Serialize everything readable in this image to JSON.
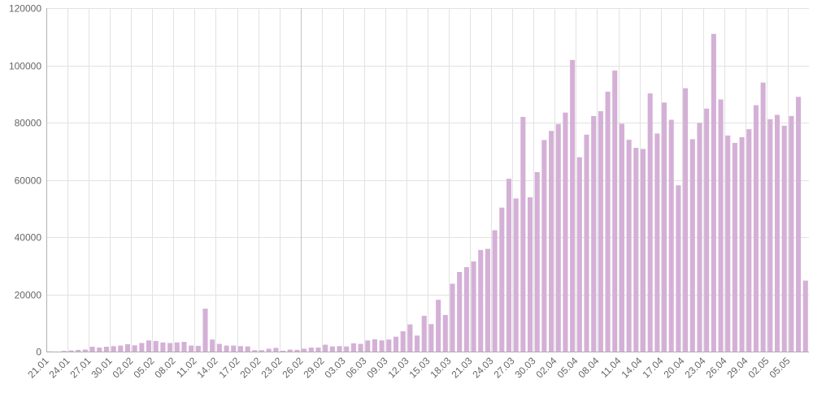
{
  "chart_data": {
    "type": "bar",
    "title": "",
    "xlabel": "",
    "ylabel": "",
    "ylim": [
      0,
      120000
    ],
    "yticks": [
      0,
      20000,
      40000,
      60000,
      80000,
      100000,
      120000
    ],
    "ytick_labels": [
      "0",
      "20000",
      "40000",
      "60000",
      "80000",
      "100000",
      "120000"
    ],
    "grid": true,
    "bar_color": "#d4b0d6",
    "marker_line_date": "26.02",
    "xtick_every": 3,
    "categories": [
      "21.01",
      "22.01",
      "23.01",
      "24.01",
      "25.01",
      "26.01",
      "27.01",
      "28.01",
      "29.01",
      "30.01",
      "31.01",
      "01.02",
      "02.02",
      "03.02",
      "04.02",
      "05.02",
      "06.02",
      "07.02",
      "08.02",
      "09.02",
      "10.02",
      "11.02",
      "12.02",
      "13.02",
      "14.02",
      "15.02",
      "16.02",
      "17.02",
      "18.02",
      "19.02",
      "20.02",
      "21.02",
      "22.02",
      "23.02",
      "24.02",
      "25.02",
      "26.02",
      "27.02",
      "28.02",
      "29.02",
      "01.03",
      "02.03",
      "03.03",
      "04.03",
      "05.03",
      "06.03",
      "07.03",
      "08.03",
      "09.03",
      "10.03",
      "11.03",
      "12.03",
      "13.03",
      "14.03",
      "15.03",
      "16.03",
      "17.03",
      "18.03",
      "19.03",
      "20.03",
      "21.03",
      "22.03",
      "23.03",
      "24.03",
      "25.03",
      "26.03",
      "27.03",
      "28.03",
      "29.03",
      "30.03",
      "31.03",
      "01.04",
      "02.04",
      "03.04",
      "04.04",
      "05.04",
      "06.04",
      "07.04",
      "08.04",
      "09.04",
      "10.04",
      "11.04",
      "12.04",
      "13.04",
      "14.04",
      "15.04",
      "16.04",
      "17.04",
      "18.04",
      "19.04",
      "20.04",
      "21.04",
      "22.04",
      "23.04",
      "24.04",
      "25.04",
      "26.04",
      "27.04",
      "28.04",
      "29.04",
      "30.04",
      "01.05",
      "02.05",
      "03.05",
      "04.05",
      "05.05",
      "06.05",
      "07.05"
    ],
    "values": [
      80,
      0,
      250,
      400,
      600,
      700,
      1700,
      1400,
      1700,
      1900,
      2100,
      2600,
      2200,
      3000,
      3900,
      3700,
      3200,
      3000,
      3200,
      3400,
      2100,
      2000,
      15000,
      4200,
      2700,
      2100,
      2100,
      1900,
      1800,
      500,
      500,
      1000,
      1300,
      300,
      700,
      600,
      1000,
      1400,
      1400,
      2400,
      1800,
      1900,
      1800,
      2900,
      2700,
      3900,
      4300,
      3900,
      4200,
      5200,
      7100,
      9500,
      5600,
      12500,
      9600,
      18100,
      12800,
      23700,
      27800,
      29500,
      31500,
      35500,
      35900,
      42400,
      50300,
      60400,
      53500,
      82000,
      53900,
      62700,
      73900,
      77100,
      79500,
      83500,
      101900,
      67900,
      75800,
      82300,
      84000,
      90800,
      98200,
      79600,
      74000,
      71200,
      70800,
      90200,
      76200,
      87000,
      81000,
      58100,
      92000,
      74200,
      79900,
      84900,
      111000,
      88100,
      75500,
      72900,
      74900,
      77700,
      86100,
      94000,
      81200,
      82700,
      78900,
      82300,
      89000,
      24800
    ]
  }
}
